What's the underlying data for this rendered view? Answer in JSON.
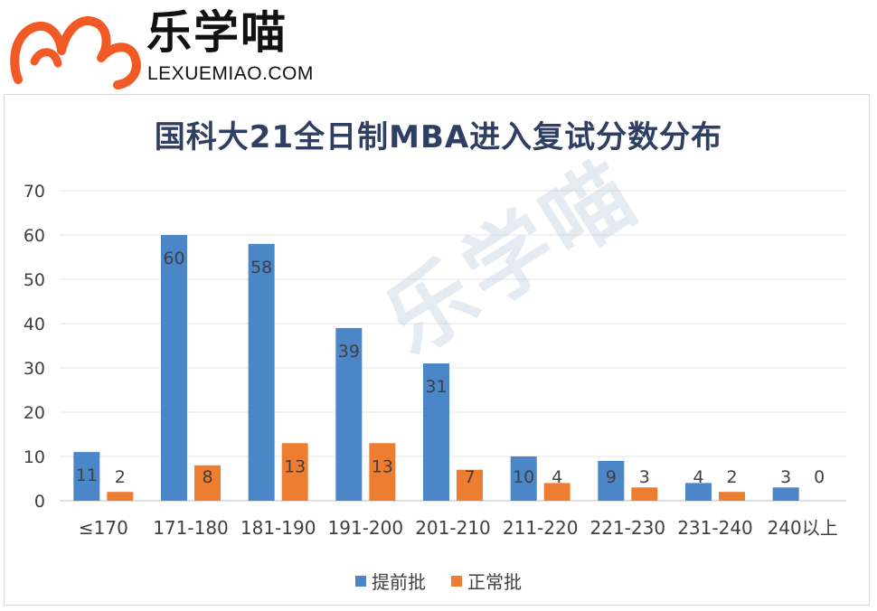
{
  "brand": {
    "name": "乐学喵",
    "domain": "LEXUEMIAO.COM",
    "logo_icon": "cat-ears-m-logo-icon",
    "logo_color": "#f15a24"
  },
  "watermark": {
    "text": "乐学喵"
  },
  "chart_data": {
    "type": "bar",
    "title": "国科大21全日制MBA进入复试分数分布",
    "categories": [
      "≤170",
      "171-180",
      "181-190",
      "191-200",
      "201-210",
      "211-220",
      "221-230",
      "231-240",
      "240以上"
    ],
    "series": [
      {
        "name": "提前批",
        "color": "#4a86c8",
        "values": [
          11,
          60,
          58,
          39,
          31,
          10,
          9,
          4,
          3
        ]
      },
      {
        "name": "正常批",
        "color": "#ed7d31",
        "values": [
          2,
          8,
          13,
          13,
          7,
          4,
          3,
          2,
          0
        ]
      }
    ],
    "yticks": [
      0,
      10,
      20,
      30,
      40,
      50,
      60,
      70
    ],
    "ylim": [
      0,
      70
    ],
    "grid": true,
    "legend_position": "bottom"
  }
}
